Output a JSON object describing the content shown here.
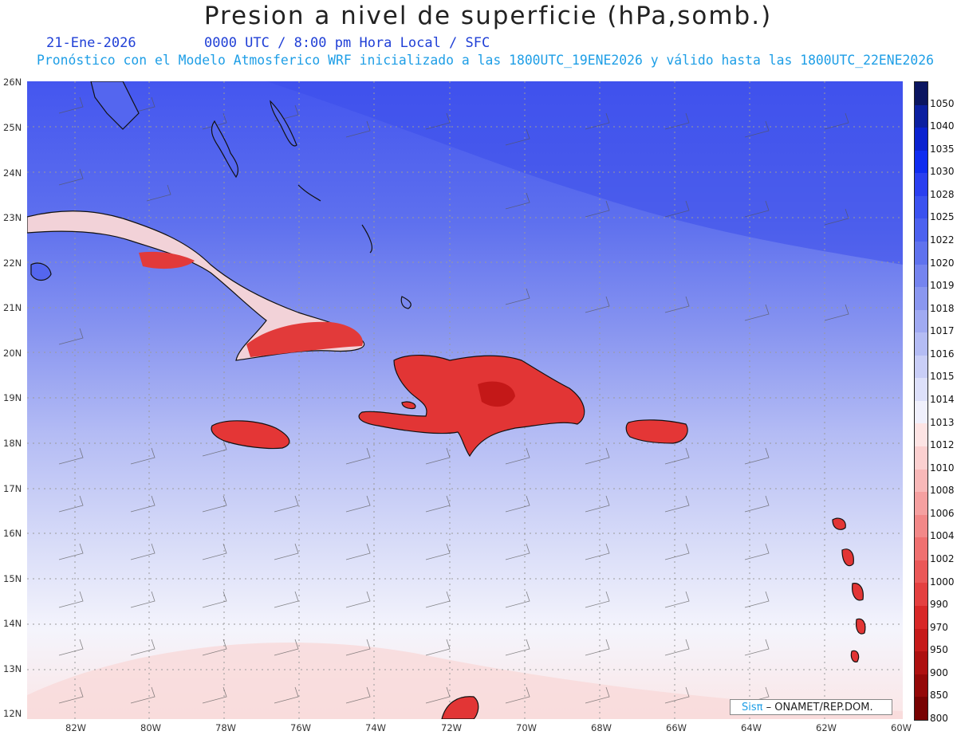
{
  "title": "Presion a nivel de superficie (hPa,somb.)",
  "date_text": "21-Ene-2026",
  "time_text": "0000 UTC / 8:00 pm Hora Local / SFC",
  "model_text": "Pronóstico con el Modelo Atmosferico WRF inicializado a las 1800UTC_19ENE2026 y válido hasta las  1800UTC_22ENE2026",
  "lat_labels": [
    "26N",
    "25N",
    "24N",
    "23N",
    "22N",
    "21N",
    "20N",
    "19N",
    "18N",
    "17N",
    "16N",
    "15N",
    "14N",
    "13N",
    "12N"
  ],
  "lon_labels": [
    "82W",
    "80W",
    "78W",
    "76W",
    "74W",
    "72W",
    "70W",
    "68W",
    "66W",
    "64W",
    "62W",
    "60W"
  ],
  "colorbar": {
    "labels": [
      "1050",
      "1040",
      "1035",
      "1030",
      "1028",
      "1025",
      "1022",
      "1020",
      "1019",
      "1018",
      "1017",
      "1016",
      "1015",
      "1014",
      "1013",
      "1012",
      "1010",
      "1008",
      "1006",
      "1004",
      "1002",
      "1000",
      "990",
      "970",
      "950",
      "900",
      "850",
      "800"
    ],
    "colors": [
      "#0a1560",
      "#0b1fa0",
      "#0a22d0",
      "#0f2cf0",
      "#2a3ff0",
      "#3b52f0",
      "#4c61ef",
      "#5f72ee",
      "#7584ef",
      "#8a97f0",
      "#a0aaf2",
      "#b4bcf4",
      "#c9cef7",
      "#dde0fa",
      "#f0f0fc",
      "#fde4e4",
      "#fbd0d0",
      "#f8b8b8",
      "#f5a0a0",
      "#f28888",
      "#ef7070",
      "#ea5858",
      "#e44040",
      "#d82828",
      "#c61a1a",
      "#ae1010",
      "#940808",
      "#780202"
    ]
  },
  "credit": {
    "brand": "Sisπ",
    "text": " – ONAMET/REP.DOM."
  }
}
